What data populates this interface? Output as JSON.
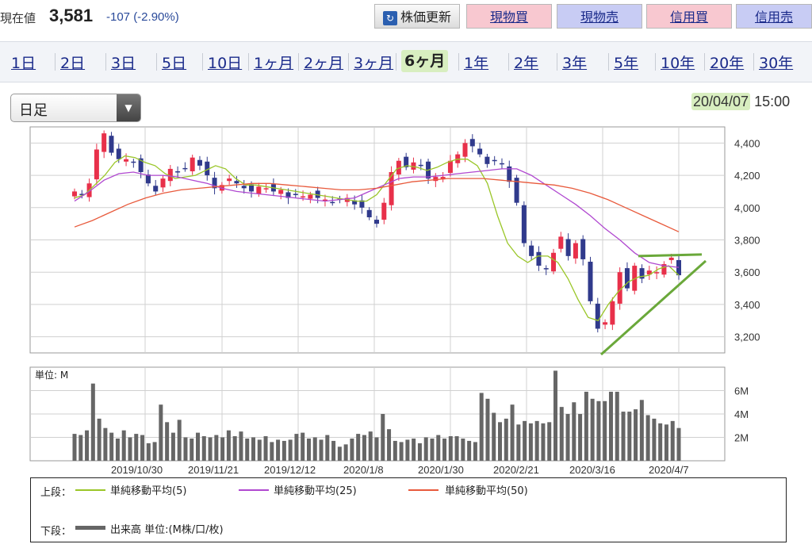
{
  "header": {
    "price_label": "現在値",
    "price_value": "3,581",
    "price_change": "-107 (-2.90%)",
    "buttons": {
      "refresh": "株価更新",
      "genbutsu_buy": "現物買",
      "genbutsu_sell": "現物売",
      "margin_buy": "信用買",
      "margin_sell": "信用売"
    }
  },
  "periods": [
    "1日",
    "2日",
    "3日",
    "5日",
    "10日",
    "1ヶ月",
    "2ヶ月",
    "3ヶ月",
    "6ヶ月",
    "1年",
    "2年",
    "3年",
    "5年",
    "10年",
    "20年",
    "30年"
  ],
  "active_period": "6ヶ月",
  "chart_type_select": "日足",
  "datetime": {
    "date": "20/04/07",
    "time": "15:00"
  },
  "colors": {
    "up": "#e8304a",
    "down": "#303a8c",
    "ma5": "#9ac628",
    "ma25": "#b048d0",
    "ma50": "#e85a3c",
    "volume": "#666666",
    "annotation": "#6aa83a"
  },
  "chart_data": [
    {
      "type": "candlestick",
      "ylim": [
        3100,
        4500
      ],
      "yticks": [
        "3,200",
        "3,400",
        "3,600",
        "3,800",
        "4,000",
        "4,200",
        "4,400"
      ],
      "xtick_labels": [
        "2019/10/30",
        "2019/11/21",
        "2019/12/12",
        "2020/1/8",
        "2020/1/30",
        "2020/2/21",
        "2020/3/16",
        "2020/4/7"
      ],
      "approx_close": [
        4100,
        4080,
        4150,
        4360,
        4460,
        4340,
        4300,
        4300,
        4280,
        4220,
        4150,
        4100,
        4180,
        4240,
        4220,
        4240,
        4310,
        4260,
        4200,
        4120,
        4140,
        4180,
        4150,
        4120,
        4100,
        4130,
        4120,
        4100,
        4110,
        4060,
        4080,
        4070,
        4080,
        4060,
        4050,
        4030,
        4050,
        4060,
        4020,
        4000,
        3940,
        3900,
        4030,
        4220,
        4290,
        4250,
        4280,
        4260,
        4180,
        4190,
        4190,
        4290,
        4330,
        4400,
        4380,
        4330,
        4270,
        4290,
        4270,
        4160,
        4030,
        3780,
        3700,
        3640,
        3620,
        3720,
        3820,
        3700,
        3780,
        3680,
        3420,
        3250,
        3290,
        3420,
        3600,
        3500,
        3640,
        3560,
        3610,
        3600,
        3650,
        3690,
        3581
      ],
      "series": [
        {
          "name": "単純移動平均(5)",
          "values": [
            4060,
            4080,
            4140,
            4200,
            4280,
            4320,
            4310,
            4280,
            4260,
            4210,
            4180,
            4190,
            4200,
            4230,
            4260,
            4240,
            4180,
            4140,
            4140,
            4130,
            4120,
            4110,
            4100,
            4090,
            4080,
            4070,
            4060,
            4050,
            4040,
            4040,
            4080,
            4160,
            4240,
            4260,
            4250,
            4230,
            4250,
            4280,
            4300,
            4300,
            4260,
            4150,
            3950,
            3780,
            3700,
            3660,
            3700,
            3700,
            3660,
            3560,
            3430,
            3320,
            3300,
            3400,
            3480,
            3540,
            3570,
            3580,
            3620,
            3640,
            3581
          ]
        },
        {
          "name": "単純移動平均(25)",
          "values": [
            4040,
            4100,
            4170,
            4210,
            4220,
            4200,
            4200,
            4190,
            4170,
            4150,
            4120,
            4100,
            4090,
            4080,
            4070,
            4060,
            4050,
            4040,
            4050,
            4060,
            4100,
            4140,
            4180,
            4190,
            4190,
            4200,
            4210,
            4220,
            4230,
            4240,
            4240,
            4200,
            4140,
            4080,
            4020,
            3950,
            3870,
            3800,
            3720,
            3660,
            3640,
            3630
          ]
        },
        {
          "name": "単純移動平均(50)",
          "values": [
            3880,
            3920,
            3970,
            4020,
            4060,
            4090,
            4110,
            4120,
            4130,
            4140,
            4150,
            4150,
            4140,
            4130,
            4120,
            4110,
            4110,
            4120,
            4140,
            4160,
            4170,
            4180,
            4180,
            4180,
            4170,
            4160,
            4150,
            4140,
            4120,
            4090,
            4050,
            4000,
            3950,
            3900,
            3850
          ]
        }
      ]
    },
    {
      "type": "bar",
      "title": "単位: M",
      "ylim": [
        0,
        8
      ],
      "yticks": [
        "2M",
        "4M",
        "6M"
      ],
      "values": [
        2.3,
        2.2,
        2.6,
        6.6,
        3.6,
        2.8,
        2.4,
        1.9,
        2.6,
        2.0,
        2.3,
        2.2,
        1.5,
        1.6,
        4.8,
        3.3,
        2.4,
        3.5,
        2.0,
        1.9,
        2.4,
        2.1,
        2.0,
        2.2,
        2.0,
        2.6,
        2.1,
        2.5,
        1.9,
        2.0,
        1.8,
        2.1,
        1.6,
        1.8,
        1.7,
        1.8,
        2.3,
        2.4,
        1.9,
        2.0,
        1.8,
        2.2,
        1.7,
        1.2,
        1.4,
        1.9,
        2.3,
        2.2,
        2.5,
        2.0,
        4.0,
        2.7,
        1.7,
        1.6,
        1.8,
        1.9,
        1.5,
        2.0,
        1.9,
        2.2,
        1.9,
        2.1,
        2.1,
        1.9,
        1.7,
        1.6,
        5.8,
        5.3,
        4.1,
        3.3,
        3.6,
        4.8,
        3.1,
        3.4,
        3.2,
        3.4,
        3.2,
        3.3,
        7.7,
        4.6,
        4.0,
        5.0,
        4.0,
        5.9,
        5.3,
        5.1,
        5.1,
        5.9,
        5.9,
        4.2,
        4.2,
        4.4,
        5.2,
        3.9,
        3.6,
        3.2,
        3.1,
        3.4,
        2.8
      ]
    }
  ],
  "legend": {
    "top_label": "上段：",
    "bottom_label": "下段：",
    "ma5": "単純移動平均(5)",
    "ma25": "単純移動平均(25)",
    "ma50": "単純移動平均(50)",
    "volume": "出来高 単位:(M株/口/枚)"
  }
}
